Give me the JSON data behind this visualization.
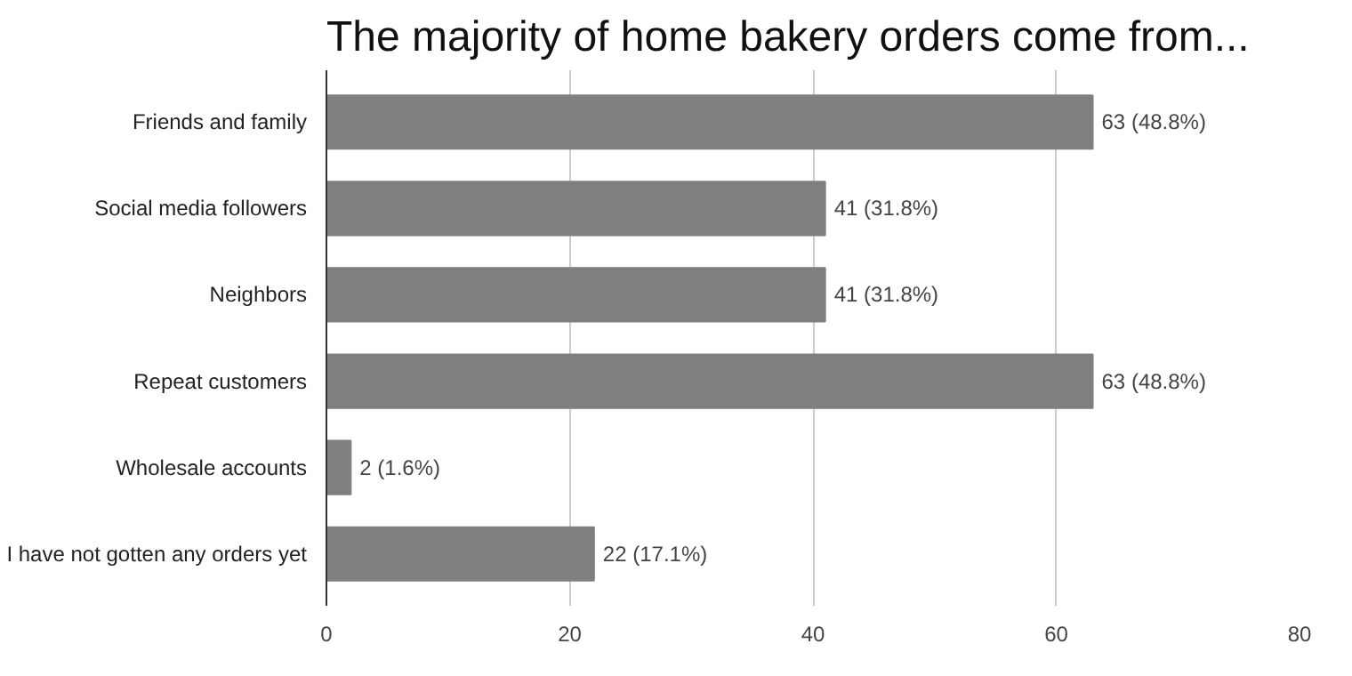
{
  "chart_data": {
    "type": "bar",
    "orientation": "horizontal",
    "title": "The majority of home bakery orders come from...",
    "categories": [
      "Friends and family",
      "Social media followers",
      "Neighbors",
      "Repeat customers",
      "Wholesale accounts",
      "I have not gotten any orders yet"
    ],
    "values": [
      63,
      41,
      41,
      63,
      2,
      22
    ],
    "value_labels": [
      "63 (48.8%)",
      "41 (31.8%)",
      "41 (31.8%)",
      "63 (48.8%)",
      "2 (1.6%)",
      "22 (17.1%)"
    ],
    "color": "#7f7f7f",
    "xlim": [
      0,
      80
    ],
    "xticks": [
      0,
      20,
      40,
      60,
      80
    ],
    "grid": "x"
  }
}
